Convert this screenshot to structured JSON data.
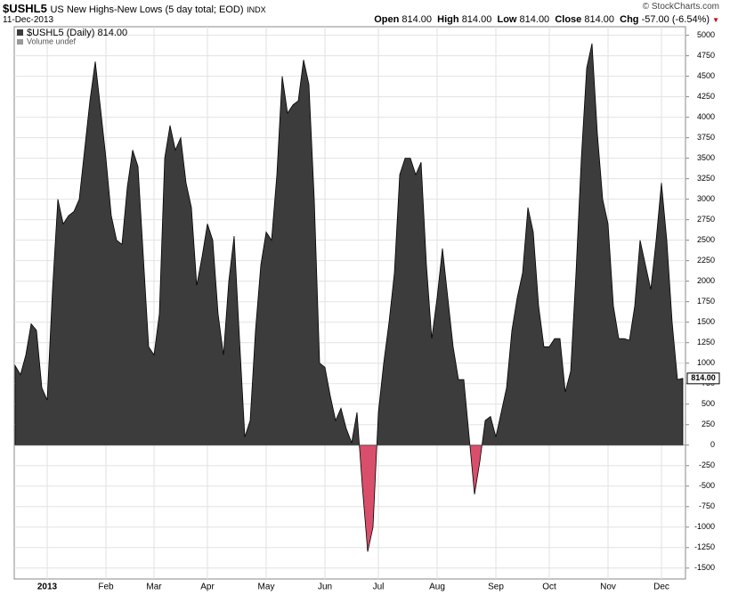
{
  "header": {
    "symbol": "$USHL5",
    "description": "US New Highs-New Lows (5 day total; EOD)",
    "exchange": "INDX",
    "date": "11-Dec-2013",
    "copyright": "© StockCharts.com",
    "quote": {
      "open_label": "Open",
      "open": "814.00",
      "high_label": "High",
      "high": "814.00",
      "low_label": "Low",
      "low": "814.00",
      "close_label": "Close",
      "close": "814.00",
      "chg_label": "Chg",
      "chg": "-57.00 (-6.54%)"
    }
  },
  "chart_data": {
    "type": "area",
    "legend": [
      "$USHL5 (Daily) 814.00",
      "Volume undef"
    ],
    "last_value_label": "814.00",
    "positive_color": "#3c3c3c",
    "negative_color": "#d94f6b",
    "grid": true,
    "categories": [
      null,
      null,
      null,
      null,
      null,
      null,
      "2013",
      null,
      null,
      null,
      null,
      null,
      null,
      null,
      null,
      null,
      null,
      "Feb",
      null,
      null,
      null,
      null,
      null,
      null,
      null,
      null,
      "Mar",
      null,
      null,
      null,
      null,
      null,
      null,
      null,
      null,
      null,
      "Apr",
      null,
      null,
      null,
      null,
      null,
      null,
      null,
      null,
      null,
      null,
      "May",
      null,
      null,
      null,
      null,
      null,
      null,
      null,
      null,
      null,
      null,
      "Jun",
      null,
      null,
      null,
      null,
      null,
      null,
      null,
      null,
      null,
      "Jul",
      null,
      null,
      null,
      null,
      null,
      null,
      null,
      null,
      null,
      null,
      "Aug",
      null,
      null,
      null,
      null,
      null,
      null,
      null,
      null,
      null,
      null,
      "Sep",
      null,
      null,
      null,
      null,
      null,
      null,
      null,
      null,
      null,
      "Oct",
      null,
      null,
      null,
      null,
      null,
      null,
      null,
      null,
      null,
      null,
      "Nov",
      null,
      null,
      null,
      null,
      null,
      null,
      null,
      null,
      null,
      "Dec",
      null,
      null,
      null,
      null
    ],
    "values": [
      970,
      860,
      1100,
      1480,
      1400,
      700,
      550,
      1900,
      3000,
      2700,
      2800,
      2850,
      3000,
      3600,
      4200,
      4680,
      4100,
      3500,
      2800,
      2500,
      2450,
      3150,
      3600,
      3400,
      2300,
      1200,
      1100,
      1600,
      3500,
      3900,
      3600,
      3750,
      3200,
      2900,
      1950,
      2300,
      2700,
      2500,
      1600,
      1100,
      2000,
      2550,
      1300,
      100,
      300,
      1400,
      2200,
      2600,
      2500,
      3300,
      4500,
      4050,
      4150,
      4200,
      4700,
      4400,
      3000,
      1000,
      950,
      600,
      300,
      450,
      200,
      30,
      400,
      -500,
      -1300,
      -1000,
      400,
      1000,
      1500,
      2100,
      3300,
      3500,
      3500,
      3300,
      3450,
      2200,
      1300,
      1800,
      2400,
      1800,
      1200,
      800,
      800,
      100,
      -600,
      -200,
      300,
      350,
      100,
      400,
      700,
      1400,
      1800,
      2100,
      2900,
      2600,
      1700,
      1200,
      1200,
      1300,
      1300,
      650,
      900,
      2100,
      3500,
      4600,
      4900,
      3800,
      3000,
      2700,
      1700,
      1300,
      1300,
      1280,
      1700,
      2500,
      2200,
      1900,
      2500,
      3200,
      2500,
      1500,
      800,
      814
    ],
    "ylim": [
      -1600,
      5050
    ],
    "yticks": [
      -1500,
      -1250,
      -1000,
      -750,
      -500,
      -250,
      0,
      250,
      500,
      750,
      1000,
      1250,
      1500,
      1750,
      2000,
      2250,
      2500,
      2750,
      3000,
      3250,
      3500,
      3750,
      4000,
      4250,
      4500,
      4750,
      5000
    ]
  }
}
